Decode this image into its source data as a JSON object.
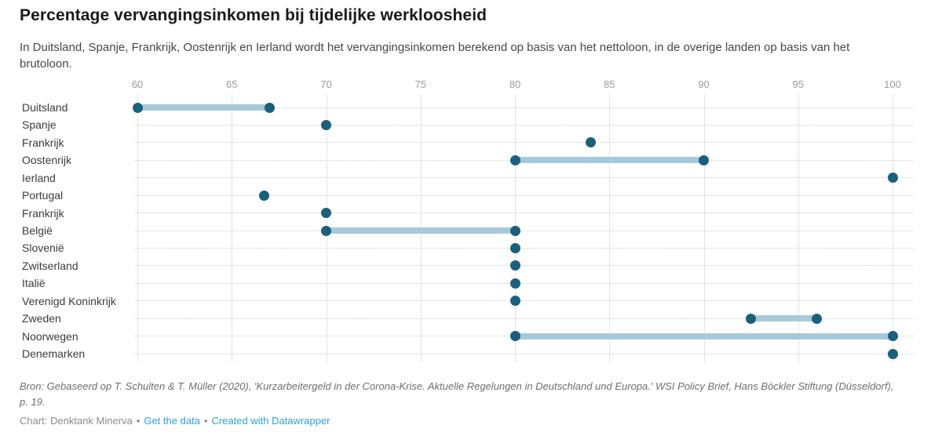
{
  "header": {
    "title": "Percentage vervangingsinkomen bij tijdelijke werkloosheid",
    "subtitle": "In Duitsland, Spanje, Frankrijk, Oostenrijk en Ierland wordt het vervangingsinkomen berekend op basis van het nettoloon, in de overige landen op basis van het brutoloon."
  },
  "chart_data": {
    "type": "range-dot",
    "title": "Percentage vervangingsinkomen bij tijdelijke werkloosheid",
    "xlabel": "",
    "ylabel": "",
    "axis": {
      "min": 60,
      "max": 100,
      "ticks": [
        60,
        65,
        70,
        75,
        80,
        85,
        90,
        95,
        100
      ]
    },
    "grid": "vertical-solid-plus-dotted-row-guides",
    "rows": [
      {
        "label": "Duitsland",
        "type": "range",
        "start": 60,
        "end": 67
      },
      {
        "label": "Spanje",
        "type": "dot",
        "value": 70
      },
      {
        "label": "Frankrijk",
        "type": "dot",
        "value": 84
      },
      {
        "label": "Oostenrijk",
        "type": "range",
        "start": 80,
        "end": 90
      },
      {
        "label": "Ierland",
        "type": "dot",
        "value": 100
      },
      {
        "label": "Portugal",
        "type": "dot",
        "value": 66.7
      },
      {
        "label": "Frankrijk",
        "type": "dot",
        "value": 70
      },
      {
        "label": "België",
        "type": "range",
        "start": 70,
        "end": 80
      },
      {
        "label": "Slovenië",
        "type": "dot",
        "value": 80
      },
      {
        "label": "Zwitserland",
        "type": "dot",
        "value": 80
      },
      {
        "label": "Italië",
        "type": "dot",
        "value": 80
      },
      {
        "label": "Verenigd Koninkrijk",
        "type": "dot",
        "value": 80
      },
      {
        "label": "Zweden",
        "type": "range",
        "start": 92.5,
        "end": 96
      },
      {
        "label": "Noorwegen",
        "type": "range",
        "start": 80,
        "end": 100
      },
      {
        "label": "Denemarken",
        "type": "dot",
        "value": 100
      }
    ],
    "colors": {
      "dot": "#1a607d",
      "bar": "#a6cadb"
    }
  },
  "footer": {
    "source": "Bron: Gebaseerd op T. Schulten & T. Müller (2020), 'Kurzarbeitergeld in der Corona-Krise. Aktuelle Regelungen in Deutschland und Europa.' WSI Policy Brief, Hans Böckler Stiftung (Düsseldorf), p. 19.",
    "byline_prefix": "Chart: Denktank Minerva",
    "separator": "•",
    "links": [
      {
        "label": "Get the data"
      },
      {
        "label": "Created with Datawrapper"
      }
    ],
    "link_color": "#2fa2d9"
  }
}
